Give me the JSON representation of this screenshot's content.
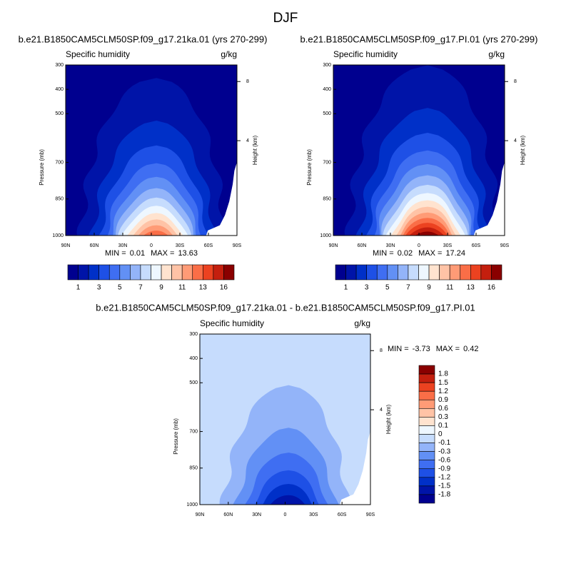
{
  "title": "DJF",
  "panels": [
    {
      "title": "b.e21.B1850CAM5CLM50SP.f09_g17.21ka.01 (yrs 270-299)",
      "left_string": "Specific humidity",
      "right_string": "g/kg",
      "y_axis_label": "Pressure (mb)",
      "y2_axis_label": "Height (km)",
      "ylim": [
        300,
        1000
      ],
      "yticks": [
        300,
        400,
        500,
        700,
        850,
        1000
      ],
      "y2ticks": [
        8,
        4
      ],
      "xticks": [
        "90N",
        "60N",
        "30N",
        "0",
        "30S",
        "60S",
        "90S"
      ],
      "min_label": "MIN =",
      "min": 0.01,
      "max_label": "MAX =",
      "max": 13.63,
      "colorbar": {
        "labels": [
          1,
          3,
          5,
          7,
          9,
          11,
          13,
          16
        ],
        "colors": [
          "#00008f",
          "#0014a8",
          "#0030c8",
          "#1e50e6",
          "#3f6ef2",
          "#6290f5",
          "#93b4f9",
          "#c6dcfd",
          "#eef7ff",
          "#ffe3cf",
          "#ffc3a6",
          "#ff9b76",
          "#fa6e47",
          "#ec4220",
          "#c41f0e",
          "#8a0000"
        ]
      }
    },
    {
      "title": "b.e21.B1850CAM5CLM50SP.f09_g17.PI.01 (yrs 270-299)",
      "left_string": "Specific humidity",
      "right_string": "g/kg",
      "y_axis_label": "Pressure (mb)",
      "y2_axis_label": "Height (km)",
      "ylim": [
        300,
        1000
      ],
      "yticks": [
        300,
        400,
        500,
        700,
        850,
        1000
      ],
      "y2ticks": [
        8,
        4
      ],
      "xticks": [
        "90N",
        "60N",
        "30N",
        "0",
        "30S",
        "60S",
        "90S"
      ],
      "min_label": "MIN =",
      "min": 0.02,
      "max_label": "MAX =",
      "max": 17.24,
      "colorbar": {
        "labels": [
          1,
          3,
          5,
          7,
          9,
          11,
          13,
          16
        ],
        "colors": [
          "#00008f",
          "#0014a8",
          "#0030c8",
          "#1e50e6",
          "#3f6ef2",
          "#6290f5",
          "#93b4f9",
          "#c6dcfd",
          "#eef7ff",
          "#ffe3cf",
          "#ffc3a6",
          "#ff9b76",
          "#fa6e47",
          "#ec4220",
          "#c41f0e",
          "#8a0000"
        ]
      }
    },
    {
      "title": "b.e21.B1850CAM5CLM50SP.f09_g17.21ka.01 - b.e21.B1850CAM5CLM50SP.f09_g17.PI.01",
      "left_string": "Specific humidity",
      "right_string": "g/kg",
      "y_axis_label": "Pressure (mb)",
      "y2_axis_label": "Height (km)",
      "ylim": [
        300,
        1000
      ],
      "yticks": [
        300,
        400,
        500,
        700,
        850,
        1000
      ],
      "y2ticks": [
        8,
        4
      ],
      "xticks": [
        "90N",
        "60N",
        "30N",
        "0",
        "30S",
        "60S",
        "90S"
      ],
      "min_label": "MIN =",
      "min": -3.73,
      "max_label": "MAX =",
      "max": 0.42,
      "colorbar": {
        "labels": [
          1.8,
          1.5,
          1.2,
          0.9,
          0.6,
          0.3,
          0.1,
          0,
          -0.1,
          -0.3,
          -0.6,
          -0.9,
          -1.2,
          -1.5,
          -1.8
        ],
        "colors": [
          "#8a0000",
          "#c41f0e",
          "#ec4220",
          "#fa6e47",
          "#ff9b76",
          "#ffc3a6",
          "#ffe3cf",
          "#eef7ff",
          "#c6dcfd",
          "#93b4f9",
          "#6290f5",
          "#3f6ef2",
          "#1e50e6",
          "#0030c8",
          "#0014a8",
          "#00008f"
        ]
      }
    }
  ]
}
